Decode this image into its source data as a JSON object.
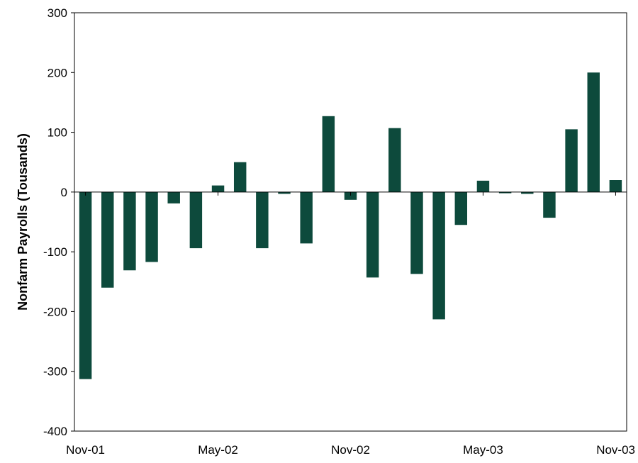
{
  "chart_data": {
    "type": "bar",
    "ylabel": "Nonfarm Payrolls (Tousands)",
    "xlabel": "",
    "ylim": [
      -400,
      300
    ],
    "y_ticks": [
      300,
      200,
      100,
      0,
      -100,
      -200,
      -300,
      -400
    ],
    "y_tick_labels": [
      "300",
      "200",
      "100",
      "0",
      "-100",
      "-200",
      "-300",
      "-400"
    ],
    "x_tick_labels": [
      "Nov-01",
      "May-02",
      "Nov-02",
      "May-03",
      "Nov-03"
    ],
    "grid": false,
    "bar_color": "#0d4a3c",
    "categories": [
      "Nov-01",
      "Dec-01",
      "Jan-02",
      "Feb-02",
      "Mar-02",
      "Apr-02",
      "May-02",
      "Jun-02",
      "Jul-02",
      "Aug-02",
      "Sep-02",
      "Oct-02",
      "Nov-02",
      "Dec-02",
      "Jan-03",
      "Feb-03",
      "Mar-03",
      "Apr-03",
      "May-03",
      "Jun-03",
      "Jul-03",
      "Aug-03",
      "Sep-03",
      "Oct-03",
      "Nov-03"
    ],
    "values": [
      -313,
      -160,
      -131,
      -117,
      -19,
      -94,
      11,
      50,
      -94,
      -3,
      -86,
      127,
      -13,
      -143,
      107,
      -137,
      -213,
      -55,
      19,
      -2,
      -3,
      -43,
      105,
      200,
      20
    ]
  }
}
